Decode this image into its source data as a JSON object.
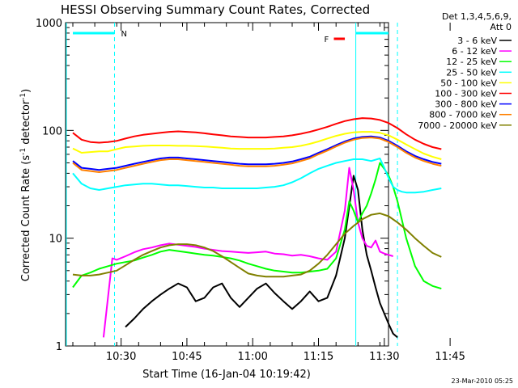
{
  "chart_data": {
    "type": "line",
    "title": "HESSI Observing Summary Count Rates, Corrected",
    "xlabel": "Start Time (16-Jan-04 10:19:42)",
    "ylabel": "Corrected Count Rate (s",
    "ylabel_sup1": "-1",
    "ylabel_mid": " detector",
    "ylabel_sup2": "-1",
    "ylabel_end": ")",
    "yscale": "log",
    "ylim": [
      1,
      1000
    ],
    "xlim_min": [
      0,
      85
    ],
    "x_ticks": [
      {
        "min": 11,
        "label": "10:30"
      },
      {
        "min": 26,
        "label": "10:45"
      },
      {
        "min": 41,
        "label": "11:00"
      },
      {
        "min": 56,
        "label": "11:15"
      },
      {
        "min": 71,
        "label": "11:30"
      },
      {
        "min": 86,
        "label": "11:45"
      }
    ],
    "y_ticks": [
      {
        "value": 1,
        "label": "1"
      },
      {
        "value": 10,
        "label": "10"
      },
      {
        "value": 100,
        "label": "100"
      },
      {
        "value": 1000,
        "label": "1000"
      }
    ],
    "legend_header": [
      "Det 1,3,4,5,6,9,",
      "Att 0"
    ],
    "timestamp": "23-Mar-2010 05:25",
    "flags": {
      "night": {
        "label": "N",
        "color": "#00ffff",
        "bars": [
          [
            0,
            9.5
          ],
          [
            64.5,
            74
          ]
        ],
        "lines": [
          9.5,
          64.5,
          74
        ]
      },
      "flare": {
        "label": "F",
        "color": "#ff0000",
        "bar": [
          59.5,
          62
        ]
      }
    },
    "series": [
      {
        "name": "3 - 6 keV",
        "color": "#000000",
        "x": [
          0,
          5,
          10,
          12,
          14,
          16,
          18,
          20,
          22,
          24,
          26,
          28,
          30,
          32,
          34,
          36,
          38,
          40,
          42,
          44,
          46,
          48,
          50,
          52,
          54,
          56,
          58,
          60,
          62,
          64,
          65,
          66,
          67,
          68,
          69,
          70,
          71,
          72,
          73,
          74
        ],
        "y": [
          null,
          null,
          null,
          1.5,
          1.8,
          2.2,
          2.6,
          3.0,
          3.4,
          3.8,
          3.5,
          2.6,
          2.8,
          3.5,
          3.8,
          2.8,
          2.3,
          2.8,
          3.4,
          3.8,
          3.1,
          2.6,
          2.2,
          2.6,
          3.2,
          2.6,
          2.8,
          4.5,
          10,
          38,
          28,
          12,
          7,
          5,
          3.5,
          2.5,
          2.0,
          1.6,
          1.3,
          1.2
        ]
      },
      {
        "name": "6 - 12 keV",
        "color": "#ff00ff",
        "x": [
          0,
          5,
          7,
          9,
          10,
          12,
          14,
          16,
          18,
          20,
          22,
          24,
          26,
          28,
          30,
          32,
          34,
          36,
          38,
          40,
          42,
          44,
          46,
          48,
          50,
          52,
          54,
          56,
          58,
          60,
          62,
          63,
          64,
          65,
          66,
          67,
          68,
          69,
          70,
          71,
          72,
          73
        ],
        "y": [
          null,
          null,
          1.2,
          6.5,
          6.3,
          6.8,
          7.4,
          7.9,
          8.2,
          8.6,
          8.9,
          8.7,
          8.5,
          8.3,
          8.0,
          7.8,
          7.6,
          7.5,
          7.4,
          7.3,
          7.4,
          7.5,
          7.2,
          7.1,
          6.9,
          7.0,
          6.8,
          6.5,
          6.3,
          7.5,
          18,
          45,
          28,
          14,
          10,
          8.5,
          8.2,
          9.5,
          7.5,
          7.2,
          7.0,
          6.8
        ]
      },
      {
        "name": "12 - 25 keV",
        "color": "#00ff00",
        "x": [
          0,
          2,
          4,
          6,
          8,
          10,
          12,
          14,
          16,
          18,
          20,
          22,
          24,
          26,
          28,
          30,
          32,
          34,
          36,
          38,
          40,
          42,
          44,
          46,
          48,
          50,
          52,
          54,
          56,
          58,
          60,
          62,
          63,
          64,
          65,
          66,
          67,
          68,
          69,
          70,
          71,
          72,
          73,
          74,
          76,
          78,
          80,
          82,
          84
        ],
        "y": [
          3.5,
          4.5,
          4.8,
          5.2,
          5.5,
          5.8,
          6.0,
          6.2,
          6.6,
          7.0,
          7.5,
          7.8,
          7.6,
          7.4,
          7.2,
          7.0,
          6.9,
          6.7,
          6.5,
          6.2,
          5.8,
          5.5,
          5.2,
          5.0,
          4.9,
          4.8,
          4.8,
          4.9,
          5.0,
          5.2,
          6.5,
          12,
          22,
          18,
          14,
          17,
          20,
          26,
          35,
          50,
          44,
          38,
          30,
          22,
          10,
          5.5,
          4.0,
          3.6,
          3.4
        ]
      },
      {
        "name": "25 - 50 keV",
        "color": "#00ffff",
        "x": [
          0,
          2,
          4,
          6,
          8,
          10,
          12,
          14,
          16,
          18,
          20,
          22,
          24,
          26,
          28,
          30,
          32,
          34,
          36,
          38,
          40,
          42,
          44,
          46,
          48,
          50,
          52,
          54,
          56,
          58,
          60,
          62,
          64,
          66,
          68,
          70,
          71,
          72,
          73,
          74,
          75,
          76,
          78,
          80,
          82,
          84
        ],
        "y": [
          40,
          32,
          29,
          28,
          29,
          30,
          31,
          31.5,
          32,
          32,
          31.5,
          31,
          31,
          30.5,
          30,
          29.5,
          29.5,
          29,
          29,
          29,
          29,
          29,
          29.5,
          30,
          31,
          33,
          36,
          40,
          44,
          47,
          50,
          52,
          54,
          54,
          52,
          55,
          45,
          36,
          30,
          28,
          27,
          26.5,
          26.5,
          27,
          28,
          29
        ]
      },
      {
        "name": "50 - 100 keV",
        "color": "#ffff00",
        "x": [
          0,
          2,
          4,
          6,
          8,
          10,
          12,
          14,
          16,
          18,
          20,
          22,
          24,
          26,
          28,
          30,
          32,
          34,
          36,
          38,
          40,
          42,
          44,
          46,
          48,
          50,
          52,
          54,
          56,
          58,
          60,
          62,
          64,
          66,
          68,
          70,
          72,
          74,
          76,
          78,
          80,
          82,
          84
        ],
        "y": [
          68,
          62,
          63,
          64,
          64,
          67,
          70,
          71,
          72,
          72.5,
          72.5,
          72.5,
          72,
          72,
          71.5,
          71,
          70,
          69,
          68,
          67.5,
          67.5,
          67.5,
          67.5,
          68,
          69,
          70,
          72,
          75,
          79,
          84,
          89,
          93,
          96,
          97,
          97,
          95,
          90,
          82,
          74,
          67,
          61,
          57,
          54
        ]
      },
      {
        "name": "100 - 300 keV",
        "color": "#ff0000",
        "x": [
          0,
          2,
          4,
          6,
          8,
          10,
          12,
          14,
          16,
          18,
          20,
          22,
          24,
          26,
          28,
          30,
          32,
          34,
          36,
          38,
          40,
          42,
          44,
          46,
          48,
          50,
          52,
          54,
          56,
          58,
          60,
          62,
          64,
          66,
          68,
          70,
          72,
          74,
          76,
          78,
          80,
          82,
          84
        ],
        "y": [
          95,
          82,
          78,
          77,
          78,
          80,
          84,
          88,
          91,
          93,
          95,
          97,
          98,
          97,
          96,
          94,
          92,
          90,
          88,
          87,
          86,
          86,
          86,
          87,
          88,
          90,
          93,
          97,
          102,
          108,
          115,
          122,
          127,
          130,
          129,
          125,
          117,
          105,
          92,
          82,
          75,
          70,
          67
        ]
      },
      {
        "name": "300 - 800 keV",
        "color": "#0000ff",
        "x": [
          0,
          2,
          4,
          6,
          8,
          10,
          12,
          14,
          16,
          18,
          20,
          22,
          24,
          26,
          28,
          30,
          32,
          34,
          36,
          38,
          40,
          42,
          44,
          46,
          48,
          50,
          52,
          54,
          56,
          58,
          60,
          62,
          64,
          66,
          68,
          70,
          72,
          74,
          76,
          78,
          80,
          82,
          84
        ],
        "y": [
          52,
          45,
          44,
          43,
          44,
          45,
          47,
          49,
          51,
          53,
          55,
          56,
          56,
          55,
          54,
          53,
          52,
          51,
          50,
          49,
          48.5,
          48.5,
          48.5,
          49,
          50,
          51.5,
          54,
          57,
          62,
          67,
          73,
          79,
          84,
          87,
          88,
          86,
          80,
          72,
          64,
          58,
          54,
          51,
          49
        ]
      },
      {
        "name": "800 - 7000 keV",
        "color": "#ff8000",
        "x": [
          0,
          2,
          4,
          6,
          8,
          10,
          12,
          14,
          16,
          18,
          20,
          22,
          24,
          26,
          28,
          30,
          32,
          34,
          36,
          38,
          40,
          42,
          44,
          46,
          48,
          50,
          52,
          54,
          56,
          58,
          60,
          62,
          64,
          66,
          68,
          70,
          72,
          74,
          76,
          78,
          80,
          82,
          84
        ],
        "y": [
          50,
          43,
          42,
          41,
          42,
          43,
          45,
          47,
          49,
          51,
          53,
          54,
          54,
          53,
          52,
          51,
          50,
          49,
          48,
          47,
          46.5,
          46.5,
          46.5,
          47,
          48,
          49.5,
          52,
          55,
          60,
          65,
          71,
          77,
          82,
          85,
          86,
          84,
          78,
          70,
          62,
          56,
          52,
          49,
          47
        ]
      },
      {
        "name": "7000 - 20000 keV",
        "color": "#808000",
        "x": [
          0,
          2,
          4,
          6,
          8,
          10,
          12,
          14,
          16,
          18,
          20,
          22,
          24,
          26,
          28,
          30,
          32,
          34,
          36,
          38,
          40,
          42,
          44,
          46,
          48,
          50,
          52,
          54,
          56,
          58,
          60,
          62,
          64,
          66,
          68,
          70,
          72,
          74,
          76,
          78,
          80,
          82,
          84
        ],
        "y": [
          4.6,
          4.5,
          4.5,
          4.6,
          4.8,
          5.0,
          5.6,
          6.3,
          7.0,
          7.6,
          8.2,
          8.6,
          8.8,
          8.8,
          8.6,
          8.2,
          7.6,
          6.8,
          6.0,
          5.3,
          4.7,
          4.5,
          4.4,
          4.4,
          4.4,
          4.5,
          4.6,
          5.0,
          5.8,
          7.0,
          8.8,
          11,
          13,
          15,
          16.5,
          17,
          16,
          14,
          12,
          10,
          8.5,
          7.3,
          6.7
        ]
      }
    ]
  }
}
